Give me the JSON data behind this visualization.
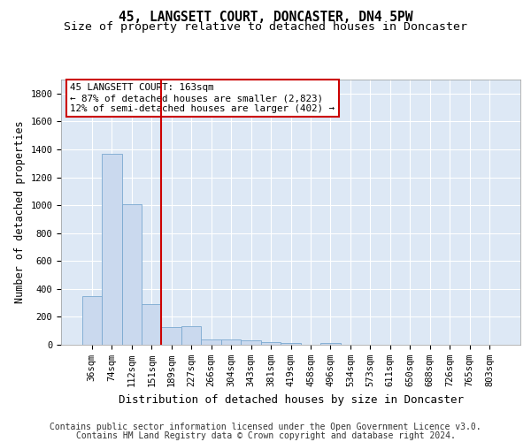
{
  "title": "45, LANGSETT COURT, DONCASTER, DN4 5PW",
  "subtitle": "Size of property relative to detached houses in Doncaster",
  "xlabel": "Distribution of detached houses by size in Doncaster",
  "ylabel": "Number of detached properties",
  "footer_line1": "Contains HM Land Registry data © Crown copyright and database right 2024.",
  "footer_line2": "Contains public sector information licensed under the Open Government Licence v3.0.",
  "bin_labels": [
    "36sqm",
    "74sqm",
    "112sqm",
    "151sqm",
    "189sqm",
    "227sqm",
    "266sqm",
    "304sqm",
    "343sqm",
    "381sqm",
    "419sqm",
    "458sqm",
    "496sqm",
    "534sqm",
    "573sqm",
    "611sqm",
    "650sqm",
    "688sqm",
    "726sqm",
    "765sqm",
    "803sqm"
  ],
  "bar_values": [
    350,
    1370,
    1010,
    290,
    125,
    130,
    40,
    40,
    30,
    20,
    15,
    0,
    15,
    0,
    0,
    0,
    0,
    0,
    0,
    0,
    0
  ],
  "bar_color": "#cad9ee",
  "bar_edge_color": "#7aa8d0",
  "red_line_x": 3.5,
  "highlight_color": "#cc0000",
  "annotation_line1": "45 LANGSETT COURT: 163sqm",
  "annotation_line2": "← 87% of detached houses are smaller (2,823)",
  "annotation_line3": "12% of semi-detached houses are larger (402) →",
  "annotation_box_color": "#ffffff",
  "annotation_box_edge_color": "#cc0000",
  "ylim": [
    0,
    1900
  ],
  "yticks": [
    0,
    200,
    400,
    600,
    800,
    1000,
    1200,
    1400,
    1600,
    1800
  ],
  "background_color": "#dde8f5",
  "grid_color": "#ffffff",
  "title_fontsize": 10.5,
  "subtitle_fontsize": 9.5,
  "ylabel_fontsize": 8.5,
  "xlabel_fontsize": 9,
  "tick_fontsize": 7.5,
  "annotation_fontsize": 7.8,
  "footer_fontsize": 7
}
